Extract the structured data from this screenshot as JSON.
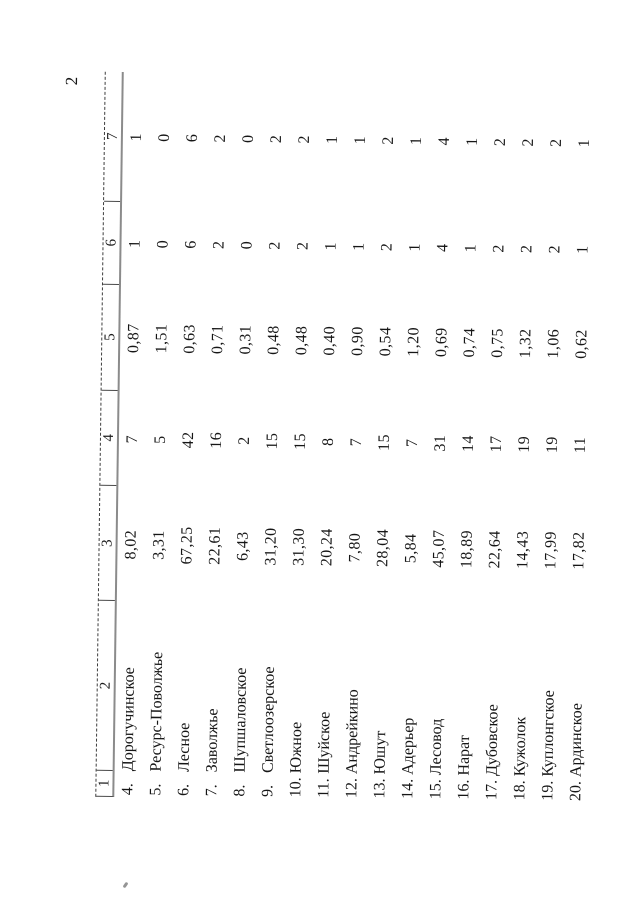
{
  "page": {
    "number": "2"
  },
  "table": {
    "header_cells": [
      "1",
      "2",
      "3",
      "4",
      "5",
      "6",
      "7"
    ],
    "rows": [
      {
        "num": "4.",
        "name": "Дорогучинское",
        "col3": "8,02",
        "col4": "7",
        "col5": "0,87",
        "col6": "1",
        "col7": "1"
      },
      {
        "num": "5.",
        "name": "Ресурс-Поволжье",
        "col3": "3,31",
        "col4": "5",
        "col5": "1,51",
        "col6": "0",
        "col7": "0"
      },
      {
        "num": "6.",
        "name": "Лесное",
        "col3": "67,25",
        "col4": "42",
        "col5": "0,63",
        "col6": "6",
        "col7": "6"
      },
      {
        "num": "7.",
        "name": "Заволжье",
        "col3": "22,61",
        "col4": "16",
        "col5": "0,71",
        "col6": "2",
        "col7": "2"
      },
      {
        "num": "8.",
        "name": "Шупшаловское",
        "col3": "6,43",
        "col4": "2",
        "col5": "0,31",
        "col6": "0",
        "col7": "0"
      },
      {
        "num": "9.",
        "name": "Светлоозерское",
        "col3": "31,20",
        "col4": "15",
        "col5": "0,48",
        "col6": "2",
        "col7": "2"
      },
      {
        "num": "10.",
        "name": "Южное",
        "col3": "31,30",
        "col4": "15",
        "col5": "0,48",
        "col6": "2",
        "col7": "2"
      },
      {
        "num": "11.",
        "name": "Шуйское",
        "col3": "20,24",
        "col4": "8",
        "col5": "0,40",
        "col6": "1",
        "col7": "1"
      },
      {
        "num": "12.",
        "name": "Андрейкино",
        "col3": "7,80",
        "col4": "7",
        "col5": "0,90",
        "col6": "1",
        "col7": "1"
      },
      {
        "num": "13.",
        "name": "Юшут",
        "col3": "28,04",
        "col4": "15",
        "col5": "0,54",
        "col6": "2",
        "col7": "2"
      },
      {
        "num": "14.",
        "name": "Адерьер",
        "col3": "5,84",
        "col4": "7",
        "col5": "1,20",
        "col6": "1",
        "col7": "1"
      },
      {
        "num": "15.",
        "name": "Лесовод",
        "col3": "45,07",
        "col4": "31",
        "col5": "0,69",
        "col6": "4",
        "col7": "4"
      },
      {
        "num": "16.",
        "name": "Нарат",
        "col3": "18,89",
        "col4": "14",
        "col5": "0,74",
        "col6": "1",
        "col7": "1"
      },
      {
        "num": "17.",
        "name": "Дубовское",
        "col3": "22,64",
        "col4": "17",
        "col5": "0,75",
        "col6": "2",
        "col7": "2"
      },
      {
        "num": "18.",
        "name": "Кужолок",
        "col3": "14,43",
        "col4": "19",
        "col5": "1,32",
        "col6": "2",
        "col7": "2"
      },
      {
        "num": "19.",
        "name": "Куплонгское",
        "col3": "17,99",
        "col4": "19",
        "col5": "1,06",
        "col6": "2",
        "col7": "2"
      },
      {
        "num": "20.",
        "name": "Ардинское",
        "col3": "17,82",
        "col4": "11",
        "col5": "0,62",
        "col6": "1",
        "col7": "1"
      }
    ]
  }
}
